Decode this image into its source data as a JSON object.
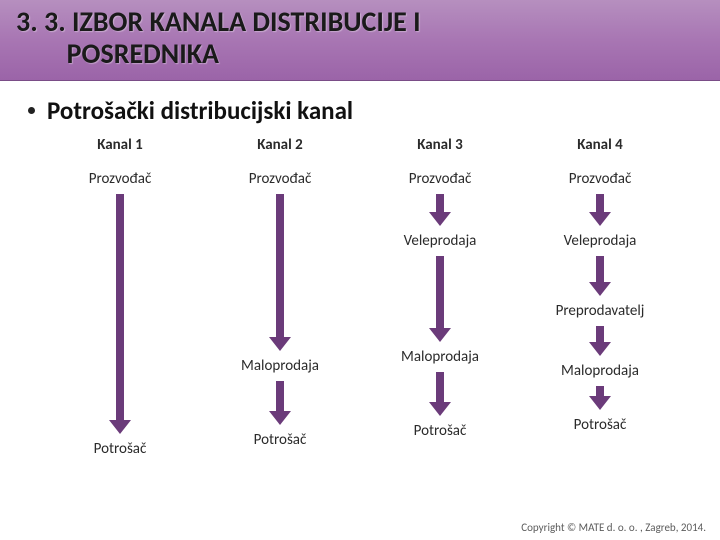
{
  "colors": {
    "arrow": "#6b3b7a",
    "header_bg_top": "#b68fbf",
    "header_bg_bottom": "#9b64a8",
    "text": "#2b2b2b",
    "bullet_text": "#111111"
  },
  "header": {
    "title_line1": "3. 3. IZBOR KANALA DISTRIBUCIJE I",
    "title_line2": "POSREDNIKA"
  },
  "bullet": {
    "text": "Potrošački distribucijski kanal"
  },
  "diagram": {
    "type": "flowchart",
    "columns": [
      {
        "header": "Kanal 1",
        "nodes": [
          "Prozvođač",
          "Potrošač"
        ],
        "arrow_lengths": [
          226
        ]
      },
      {
        "header": "Kanal 2",
        "nodes": [
          "Prozvođač",
          "Maloprodaja",
          "Potrošač"
        ],
        "arrow_lengths": [
          143,
          30
        ]
      },
      {
        "header": "Kanal 3",
        "nodes": [
          "Prozvođač",
          "Veleprodaja",
          "Maloprodaja",
          "Potrošač"
        ],
        "arrow_lengths": [
          18,
          72,
          30
        ]
      },
      {
        "header": "Kanal 4",
        "nodes": [
          "Prozvođač",
          "Veleprodaja",
          "Preprodavatelj",
          "Maloprodaja",
          "Potrošač"
        ],
        "arrow_lengths": [
          18,
          26,
          16,
          10
        ]
      }
    ],
    "arrow_color": "#6b3b7a",
    "node_fontsize": 15,
    "header_fontsize": 15,
    "shaft_width": 8,
    "head_width": 22,
    "head_height": 14
  },
  "footer": {
    "text": "Copyright © MATE d. o. o. , Zagreb, 2014."
  }
}
